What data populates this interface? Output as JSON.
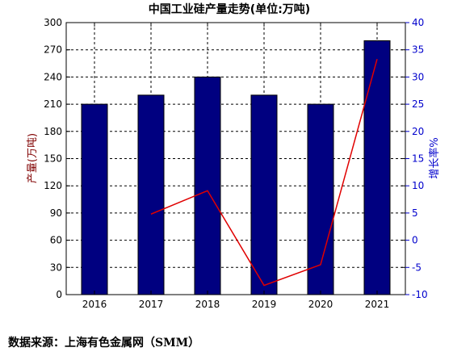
{
  "chart_data": {
    "type": "bar",
    "title": "中国工业硅产量走势(单位:万吨)",
    "xlabel": "",
    "ylabel": "产量(万吨)",
    "y2label": "增长率%",
    "categories": [
      "2016",
      "2017",
      "2018",
      "2019",
      "2020",
      "2021"
    ],
    "ylim": [
      0,
      300
    ],
    "yticks": [
      0,
      30,
      60,
      90,
      120,
      150,
      180,
      210,
      240,
      270,
      300
    ],
    "y2lim": [
      -10,
      40
    ],
    "y2ticks": [
      -10,
      -5,
      0,
      5,
      10,
      15,
      20,
      25,
      30,
      35,
      40
    ],
    "grid": true,
    "series": [
      {
        "values": [
          210,
          220,
          240,
          220,
          210,
          280
        ],
        "color": "#000080",
        "axis": "left"
      },
      {
        "values": [
          null,
          4.8,
          9.1,
          -8.3,
          -4.5,
          33.3
        ],
        "color": "#e00000",
        "axis": "right"
      }
    ]
  },
  "footer": {
    "source": "数据来源：上海有色金属网（SMM）"
  }
}
